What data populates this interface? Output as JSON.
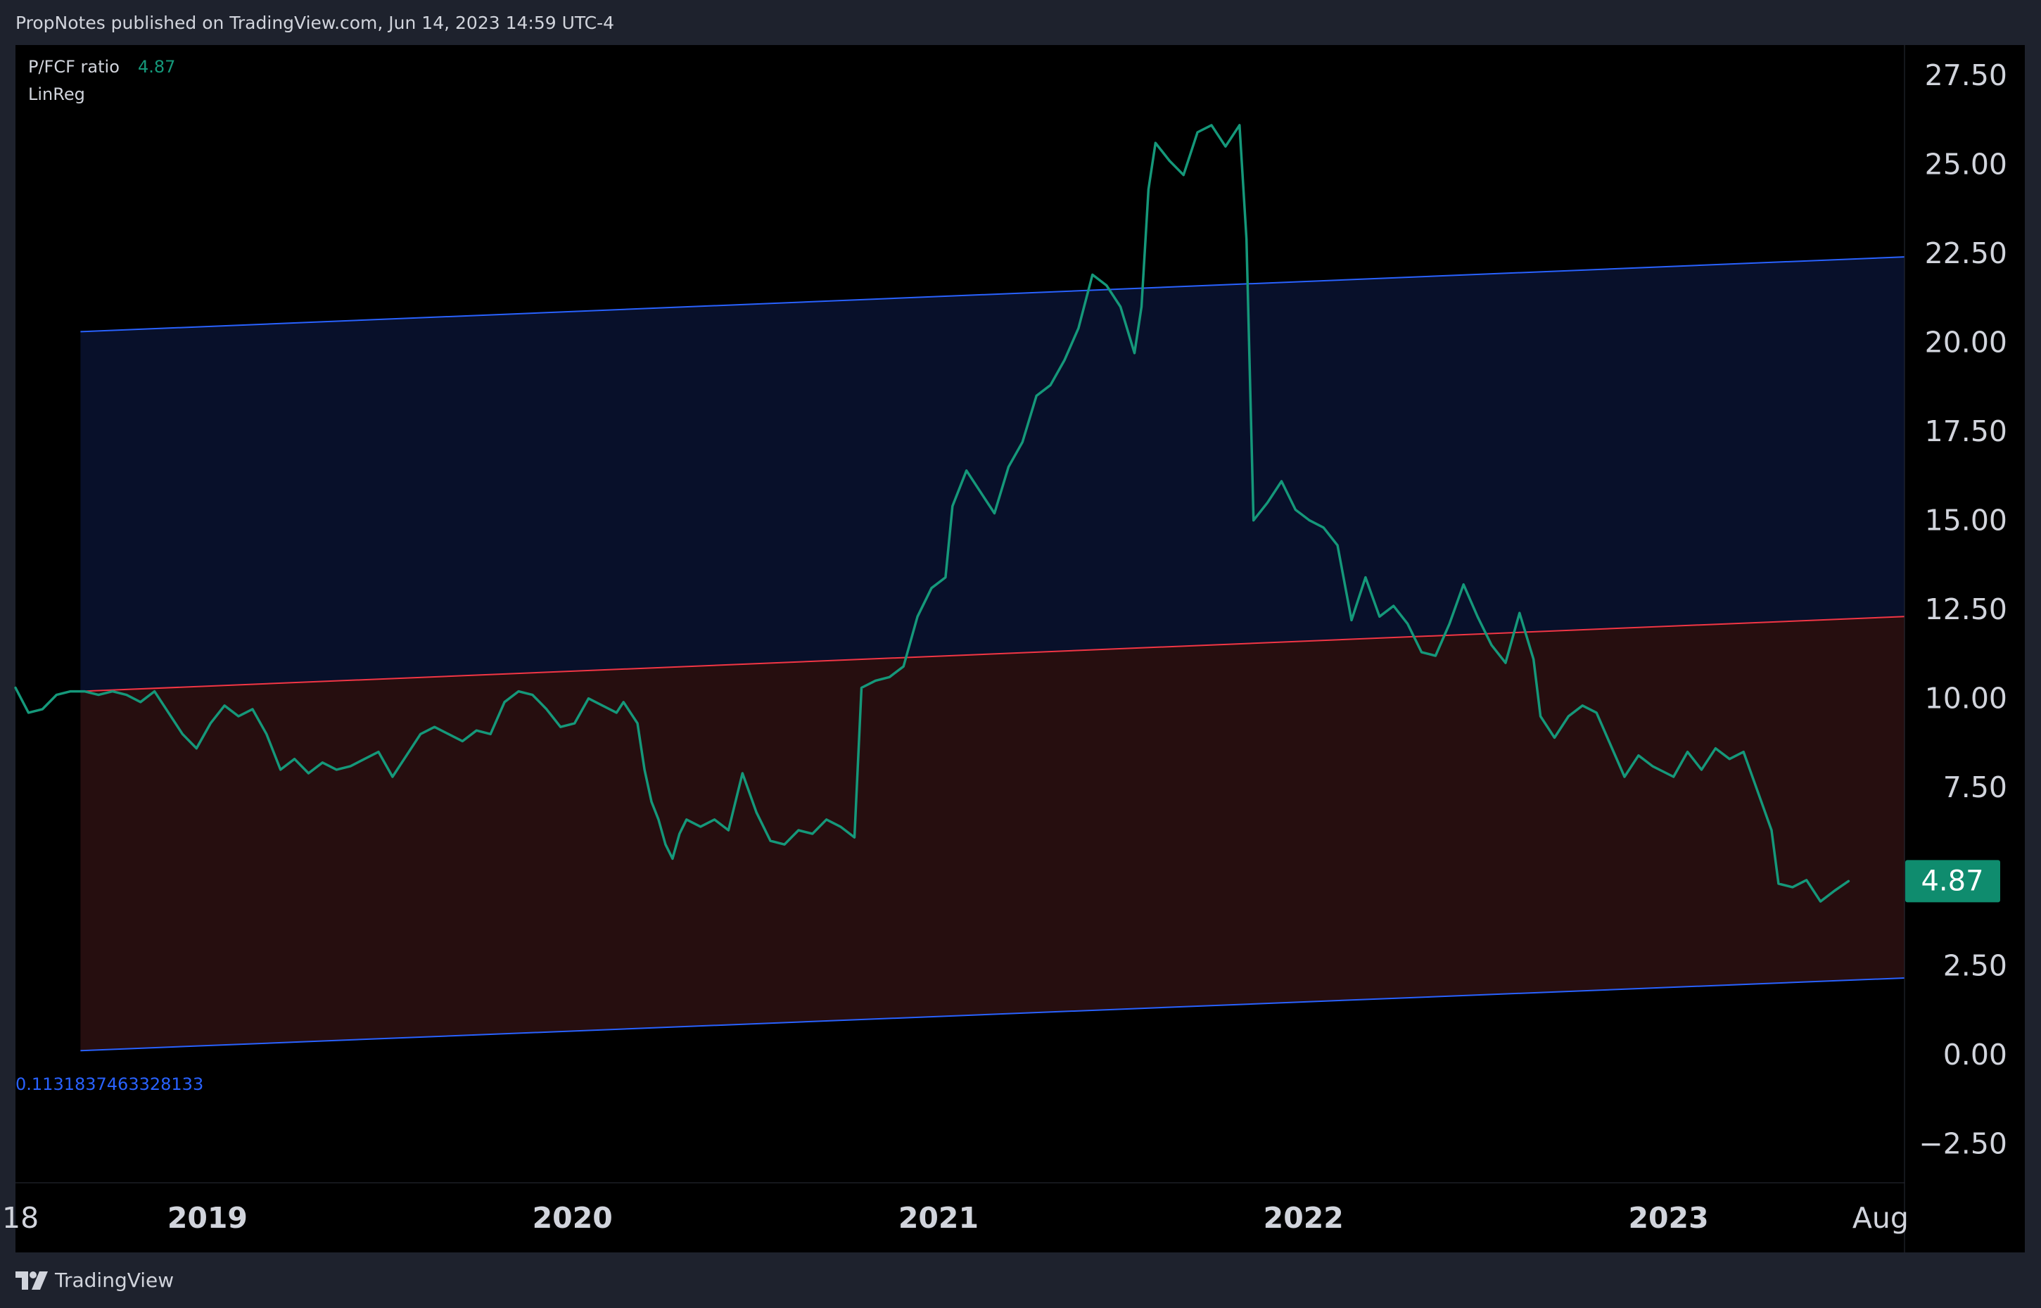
{
  "header": {
    "publish_line": "PropNotes published on TradingView.com, Jun 14, 2023 14:59 UTC-4"
  },
  "legend": {
    "series_label": "P/FCF ratio",
    "series_value": "4.87",
    "indicator_label": "LinReg"
  },
  "footer": {
    "brand": "TradingView"
  },
  "colors": {
    "background": "#000000",
    "series": "#15987a",
    "upper_band": "#2962ff",
    "lower_band": "#2962ff",
    "middle_line": "#f23645",
    "upper_fill": "#08102a",
    "lower_fill": "#260e0f",
    "price_tag_bg": "#0f8c6e"
  },
  "chart_data": {
    "type": "line",
    "title": "",
    "xlabel": "",
    "ylabel": "",
    "ylim": [
      -3.6,
      28.35
    ],
    "xlim": [
      "2018-06-23",
      "2023-08-25"
    ],
    "y_ticks": [
      "27.50",
      "25.00",
      "22.50",
      "20.00",
      "17.50",
      "15.00",
      "12.50",
      "10.00",
      "7.50",
      "2.50",
      "0.00",
      "−2.50"
    ],
    "y_tick_values": [
      27.5,
      25,
      22.5,
      20,
      17.5,
      15,
      12.5,
      10,
      7.5,
      2.5,
      0,
      -2.5
    ],
    "x_ticks": [
      {
        "label": "18",
        "date": "2018-06-28",
        "bold": false
      },
      {
        "label": "2019",
        "date": "2019-01-01",
        "bold": true
      },
      {
        "label": "2020",
        "date": "2020-01-01",
        "bold": true
      },
      {
        "label": "2021",
        "date": "2021-01-01",
        "bold": true
      },
      {
        "label": "2022",
        "date": "2022-01-01",
        "bold": true
      },
      {
        "label": "2023",
        "date": "2023-01-01",
        "bold": true
      },
      {
        "label": "Aug",
        "date": "2023-08-01",
        "bold": false
      }
    ],
    "last_value": "4.87",
    "last_value_num": 4.87,
    "regression_label": "0.1131837463328133",
    "linreg": {
      "start_date": "2018-08-27",
      "end_date": "2023-08-25",
      "upper": [
        20.3,
        22.4
      ],
      "middle": [
        10.2,
        12.3
      ],
      "lower": [
        0.11,
        2.15
      ]
    },
    "series": [
      {
        "name": "P/FCF ratio",
        "points": [
          [
            "2018-06-23",
            10.3
          ],
          [
            "2018-07-06",
            9.6
          ],
          [
            "2018-07-20",
            9.7
          ],
          [
            "2018-08-03",
            10.1
          ],
          [
            "2018-08-17",
            10.2
          ],
          [
            "2018-08-31",
            10.2
          ],
          [
            "2018-09-14",
            10.1
          ],
          [
            "2018-09-28",
            10.2
          ],
          [
            "2018-10-12",
            10.1
          ],
          [
            "2018-10-26",
            9.9
          ],
          [
            "2018-11-09",
            10.2
          ],
          [
            "2018-11-23",
            9.6
          ],
          [
            "2018-12-07",
            9.0
          ],
          [
            "2018-12-21",
            8.6
          ],
          [
            "2019-01-04",
            9.3
          ],
          [
            "2019-01-18",
            9.8
          ],
          [
            "2019-02-01",
            9.5
          ],
          [
            "2019-02-15",
            9.7
          ],
          [
            "2019-03-01",
            9.0
          ],
          [
            "2019-03-15",
            8.0
          ],
          [
            "2019-03-29",
            8.3
          ],
          [
            "2019-04-12",
            7.9
          ],
          [
            "2019-04-26",
            8.2
          ],
          [
            "2019-05-10",
            8.0
          ],
          [
            "2019-05-24",
            8.1
          ],
          [
            "2019-06-07",
            8.3
          ],
          [
            "2019-06-21",
            8.5
          ],
          [
            "2019-07-05",
            7.8
          ],
          [
            "2019-07-19",
            8.4
          ],
          [
            "2019-08-02",
            9.0
          ],
          [
            "2019-08-16",
            9.2
          ],
          [
            "2019-08-30",
            9.0
          ],
          [
            "2019-09-13",
            8.8
          ],
          [
            "2019-09-27",
            9.1
          ],
          [
            "2019-10-11",
            9.0
          ],
          [
            "2019-10-25",
            9.9
          ],
          [
            "2019-11-08",
            10.2
          ],
          [
            "2019-11-22",
            10.1
          ],
          [
            "2019-12-06",
            9.7
          ],
          [
            "2019-12-20",
            9.2
          ],
          [
            "2020-01-03",
            9.3
          ],
          [
            "2020-01-17",
            10.0
          ],
          [
            "2020-01-31",
            9.8
          ],
          [
            "2020-02-14",
            9.6
          ],
          [
            "2020-02-21",
            9.9
          ],
          [
            "2020-03-06",
            9.3
          ],
          [
            "2020-03-13",
            8.0
          ],
          [
            "2020-03-20",
            7.1
          ],
          [
            "2020-03-27",
            6.6
          ],
          [
            "2020-04-03",
            5.9
          ],
          [
            "2020-04-10",
            5.5
          ],
          [
            "2020-04-17",
            6.2
          ],
          [
            "2020-04-24",
            6.6
          ],
          [
            "2020-05-08",
            6.4
          ],
          [
            "2020-05-22",
            6.6
          ],
          [
            "2020-06-05",
            6.3
          ],
          [
            "2020-06-19",
            7.9
          ],
          [
            "2020-07-03",
            6.8
          ],
          [
            "2020-07-17",
            6.0
          ],
          [
            "2020-07-31",
            5.9
          ],
          [
            "2020-08-14",
            6.3
          ],
          [
            "2020-08-28",
            6.2
          ],
          [
            "2020-09-11",
            6.6
          ],
          [
            "2020-09-25",
            6.4
          ],
          [
            "2020-10-09",
            6.1
          ],
          [
            "2020-10-16",
            10.3
          ],
          [
            "2020-10-30",
            10.5
          ],
          [
            "2020-11-13",
            10.6
          ],
          [
            "2020-11-27",
            10.9
          ],
          [
            "2020-12-11",
            12.3
          ],
          [
            "2020-12-25",
            13.1
          ],
          [
            "2021-01-08",
            13.4
          ],
          [
            "2021-01-15",
            15.4
          ],
          [
            "2021-01-29",
            16.4
          ],
          [
            "2021-02-12",
            15.8
          ],
          [
            "2021-02-26",
            15.2
          ],
          [
            "2021-03-12",
            16.5
          ],
          [
            "2021-03-26",
            17.2
          ],
          [
            "2021-04-09",
            18.5
          ],
          [
            "2021-04-23",
            18.8
          ],
          [
            "2021-05-07",
            19.5
          ],
          [
            "2021-05-21",
            20.4
          ],
          [
            "2021-06-04",
            21.9
          ],
          [
            "2021-06-18",
            21.6
          ],
          [
            "2021-07-02",
            21.0
          ],
          [
            "2021-07-16",
            19.7
          ],
          [
            "2021-07-23",
            21.0
          ],
          [
            "2021-07-30",
            24.3
          ],
          [
            "2021-08-06",
            25.6
          ],
          [
            "2021-08-20",
            25.1
          ],
          [
            "2021-09-03",
            24.7
          ],
          [
            "2021-09-17",
            25.9
          ],
          [
            "2021-10-01",
            26.1
          ],
          [
            "2021-10-15",
            25.5
          ],
          [
            "2021-10-29",
            26.1
          ],
          [
            "2021-11-05",
            22.9
          ],
          [
            "2021-11-12",
            15.0
          ],
          [
            "2021-11-26",
            15.5
          ],
          [
            "2021-12-10",
            16.1
          ],
          [
            "2021-12-24",
            15.3
          ],
          [
            "2022-01-07",
            15.0
          ],
          [
            "2022-01-21",
            14.8
          ],
          [
            "2022-02-04",
            14.3
          ],
          [
            "2022-02-18",
            12.2
          ],
          [
            "2022-03-04",
            13.4
          ],
          [
            "2022-03-18",
            12.3
          ],
          [
            "2022-04-01",
            12.6
          ],
          [
            "2022-04-15",
            12.1
          ],
          [
            "2022-04-29",
            11.3
          ],
          [
            "2022-05-13",
            11.2
          ],
          [
            "2022-05-27",
            12.1
          ],
          [
            "2022-06-10",
            13.2
          ],
          [
            "2022-06-24",
            12.3
          ],
          [
            "2022-07-08",
            11.5
          ],
          [
            "2022-07-22",
            11.0
          ],
          [
            "2022-08-05",
            12.4
          ],
          [
            "2022-08-19",
            11.1
          ],
          [
            "2022-08-26",
            9.5
          ],
          [
            "2022-09-09",
            8.9
          ],
          [
            "2022-09-23",
            9.5
          ],
          [
            "2022-10-07",
            9.8
          ],
          [
            "2022-10-21",
            9.6
          ],
          [
            "2022-11-04",
            8.7
          ],
          [
            "2022-11-18",
            7.8
          ],
          [
            "2022-12-02",
            8.4
          ],
          [
            "2022-12-16",
            8.1
          ],
          [
            "2023-01-06",
            7.8
          ],
          [
            "2023-01-20",
            8.5
          ],
          [
            "2023-02-03",
            8.0
          ],
          [
            "2023-02-17",
            8.6
          ],
          [
            "2023-03-03",
            8.3
          ],
          [
            "2023-03-17",
            8.5
          ],
          [
            "2023-03-31",
            7.4
          ],
          [
            "2023-04-14",
            6.3
          ],
          [
            "2023-04-21",
            4.8
          ],
          [
            "2023-05-05",
            4.7
          ],
          [
            "2023-05-19",
            4.9
          ],
          [
            "2023-06-02",
            4.3
          ],
          [
            "2023-06-16",
            4.6
          ],
          [
            "2023-06-30",
            4.87
          ]
        ]
      }
    ]
  }
}
